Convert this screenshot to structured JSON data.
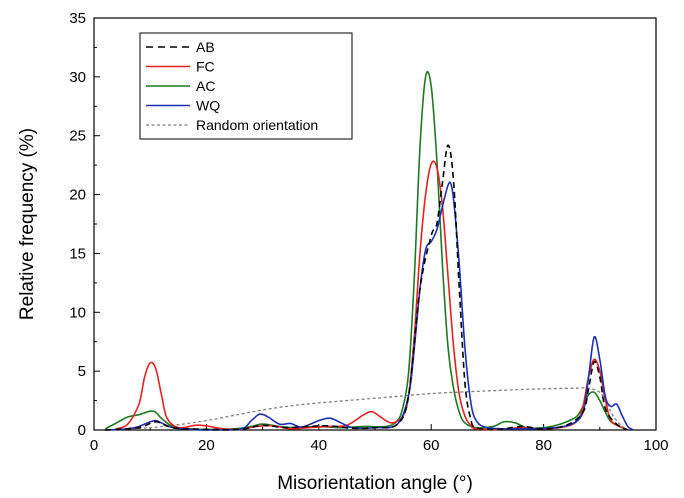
{
  "chart_data": {
    "type": "line",
    "title": "",
    "xlabel": "Misorientation angle (°)",
    "ylabel": "Relative frequency (%)",
    "xlim": [
      0,
      100
    ],
    "ylim": [
      0,
      35
    ],
    "x_ticks": [
      "0",
      "20",
      "40",
      "60",
      "80",
      "100"
    ],
    "y_ticks": [
      "0",
      "5",
      "10",
      "15",
      "20",
      "25",
      "30",
      "35"
    ],
    "grid": false,
    "legend_position": "top-left",
    "series": [
      {
        "name": "AB",
        "color": "#000000",
        "style": "dashed",
        "points": [
          [
            2,
            0
          ],
          [
            8,
            0.2
          ],
          [
            11,
            0.7
          ],
          [
            14,
            0.2
          ],
          [
            20,
            0.05
          ],
          [
            26,
            0.05
          ],
          [
            30,
            0.4
          ],
          [
            34,
            0.2
          ],
          [
            38,
            0.3
          ],
          [
            42,
            0.35
          ],
          [
            46,
            0.15
          ],
          [
            50,
            0.2
          ],
          [
            54,
            0.5
          ],
          [
            56,
            3
          ],
          [
            58,
            12
          ],
          [
            60,
            16.5
          ],
          [
            61,
            17.5
          ],
          [
            62,
            21
          ],
          [
            63,
            24.2
          ],
          [
            64,
            21
          ],
          [
            65,
            12
          ],
          [
            66,
            4
          ],
          [
            67,
            1
          ],
          [
            68,
            0.2
          ],
          [
            72,
            0.05
          ],
          [
            76,
            0.3
          ],
          [
            80,
            0.1
          ],
          [
            84,
            0.4
          ],
          [
            87,
            1.5
          ],
          [
            88,
            3.5
          ],
          [
            89,
            5.8
          ],
          [
            90,
            4.5
          ],
          [
            91,
            1.8
          ],
          [
            93,
            0.5
          ],
          [
            95,
            0
          ]
        ]
      },
      {
        "name": "FC",
        "color": "#e8211e",
        "style": "solid",
        "points": [
          [
            4,
            0.1
          ],
          [
            6,
            0.5
          ],
          [
            8,
            2.2
          ],
          [
            9,
            4.5
          ],
          [
            10,
            5.7
          ],
          [
            11,
            5.2
          ],
          [
            12,
            3
          ],
          [
            13,
            1
          ],
          [
            15,
            0.2
          ],
          [
            18,
            0.4
          ],
          [
            20,
            0.35
          ],
          [
            23,
            0.1
          ],
          [
            26,
            0.05
          ],
          [
            29,
            0.3
          ],
          [
            32,
            0.35
          ],
          [
            35,
            0.1
          ],
          [
            38,
            0.2
          ],
          [
            42,
            0.3
          ],
          [
            45,
            0.4
          ],
          [
            48,
            1.3
          ],
          [
            49.5,
            1.55
          ],
          [
            51,
            1.1
          ],
          [
            53,
            0.6
          ],
          [
            55,
            1.2
          ],
          [
            56,
            3
          ],
          [
            57,
            8
          ],
          [
            58,
            15
          ],
          [
            59,
            20
          ],
          [
            60,
            22.6
          ],
          [
            61,
            22.3
          ],
          [
            62,
            19
          ],
          [
            63,
            13
          ],
          [
            64,
            7
          ],
          [
            65,
            3
          ],
          [
            66,
            1.2
          ],
          [
            67,
            0.4
          ],
          [
            68,
            0.1
          ],
          [
            72,
            0.05
          ],
          [
            76,
            0.2
          ],
          [
            80,
            0.1
          ],
          [
            84,
            0.3
          ],
          [
            86,
            0.8
          ],
          [
            87,
            2
          ],
          [
            88,
            4.5
          ],
          [
            89,
            6
          ],
          [
            90,
            5
          ],
          [
            91,
            2.5
          ],
          [
            92,
            0.8
          ],
          [
            94,
            0.2
          ],
          [
            95,
            0
          ]
        ]
      },
      {
        "name": "AC",
        "color": "#1c7a22",
        "style": "solid",
        "points": [
          [
            2,
            0.1
          ],
          [
            4,
            0.6
          ],
          [
            6,
            1.1
          ],
          [
            8,
            1.3
          ],
          [
            10,
            1.6
          ],
          [
            11,
            1.5
          ],
          [
            12,
            1
          ],
          [
            14,
            0.3
          ],
          [
            17,
            0.1
          ],
          [
            20,
            0.05
          ],
          [
            25,
            0.1
          ],
          [
            28,
            0.3
          ],
          [
            30,
            0.5
          ],
          [
            33,
            0.3
          ],
          [
            36,
            0.2
          ],
          [
            40,
            0.3
          ],
          [
            44,
            0.2
          ],
          [
            48,
            0.3
          ],
          [
            52,
            0.3
          ],
          [
            54,
            0.8
          ],
          [
            55,
            2
          ],
          [
            56,
            5
          ],
          [
            57,
            13
          ],
          [
            58,
            24
          ],
          [
            59,
            30
          ],
          [
            60,
            29.2
          ],
          [
            61,
            23
          ],
          [
            62,
            14
          ],
          [
            63,
            7
          ],
          [
            64,
            3.5
          ],
          [
            65,
            1.5
          ],
          [
            66,
            0.6
          ],
          [
            68,
            0.2
          ],
          [
            71,
            0.3
          ],
          [
            73,
            0.7
          ],
          [
            75,
            0.6
          ],
          [
            77,
            0.2
          ],
          [
            80,
            0.2
          ],
          [
            83,
            0.5
          ],
          [
            85,
            0.9
          ],
          [
            86,
            1.2
          ],
          [
            87,
            2
          ],
          [
            88,
            3
          ],
          [
            89,
            3.2
          ],
          [
            90,
            2.5
          ],
          [
            91,
            1.5
          ],
          [
            92,
            0.7
          ],
          [
            94,
            0.2
          ],
          [
            95,
            0
          ]
        ]
      },
      {
        "name": "WQ",
        "color": "#1a2fb8",
        "style": "solid",
        "points": [
          [
            2,
            0
          ],
          [
            6,
            0.1
          ],
          [
            8,
            0.3
          ],
          [
            10,
            0.7
          ],
          [
            11,
            0.8
          ],
          [
            12,
            0.6
          ],
          [
            14,
            0.2
          ],
          [
            17,
            0.05
          ],
          [
            20,
            0
          ],
          [
            26,
            0.05
          ],
          [
            28,
            0.8
          ],
          [
            29.5,
            1.35
          ],
          [
            31,
            1.1
          ],
          [
            33,
            0.5
          ],
          [
            35,
            0.55
          ],
          [
            37,
            0.25
          ],
          [
            40,
            0.8
          ],
          [
            42,
            1
          ],
          [
            44,
            0.6
          ],
          [
            46,
            0.2
          ],
          [
            50,
            0.2
          ],
          [
            54,
            0.5
          ],
          [
            56,
            3
          ],
          [
            57,
            7
          ],
          [
            58,
            12
          ],
          [
            59,
            15.3
          ],
          [
            60,
            16
          ],
          [
            61,
            17
          ],
          [
            62,
            19
          ],
          [
            63,
            20.8
          ],
          [
            63.5,
            20.9
          ],
          [
            64,
            19.5
          ],
          [
            65,
            14
          ],
          [
            66,
            7
          ],
          [
            67,
            2.5
          ],
          [
            68,
            0.8
          ],
          [
            70,
            0.2
          ],
          [
            74,
            0.1
          ],
          [
            78,
            0.1
          ],
          [
            82,
            0.2
          ],
          [
            85,
            0.5
          ],
          [
            87,
            1.5
          ],
          [
            88,
            4.5
          ],
          [
            89,
            7.9
          ],
          [
            90,
            6
          ],
          [
            91,
            2.8
          ],
          [
            92,
            2
          ],
          [
            93,
            2.2
          ],
          [
            94,
            1.2
          ],
          [
            95,
            0.3
          ],
          [
            96,
            0
          ]
        ]
      },
      {
        "name": "Random orientation",
        "color": "#808080",
        "style": "dotted",
        "points": [
          [
            2,
            0
          ],
          [
            5,
            0.05
          ],
          [
            10,
            0.2
          ],
          [
            15,
            0.45
          ],
          [
            20,
            0.8
          ],
          [
            25,
            1.25
          ],
          [
            30,
            1.7
          ],
          [
            35,
            2.05
          ],
          [
            40,
            2.3
          ],
          [
            45,
            2.5
          ],
          [
            50,
            2.7
          ],
          [
            55,
            2.9
          ],
          [
            60,
            3.1
          ],
          [
            65,
            3.22
          ],
          [
            70,
            3.32
          ],
          [
            75,
            3.42
          ],
          [
            80,
            3.5
          ],
          [
            85,
            3.55
          ],
          [
            88,
            3.55
          ],
          [
            90,
            3.2
          ],
          [
            91,
            2.5
          ],
          [
            92,
            1.5
          ],
          [
            93,
            0.8
          ],
          [
            94,
            0.3
          ],
          [
            95,
            0
          ]
        ]
      }
    ]
  }
}
